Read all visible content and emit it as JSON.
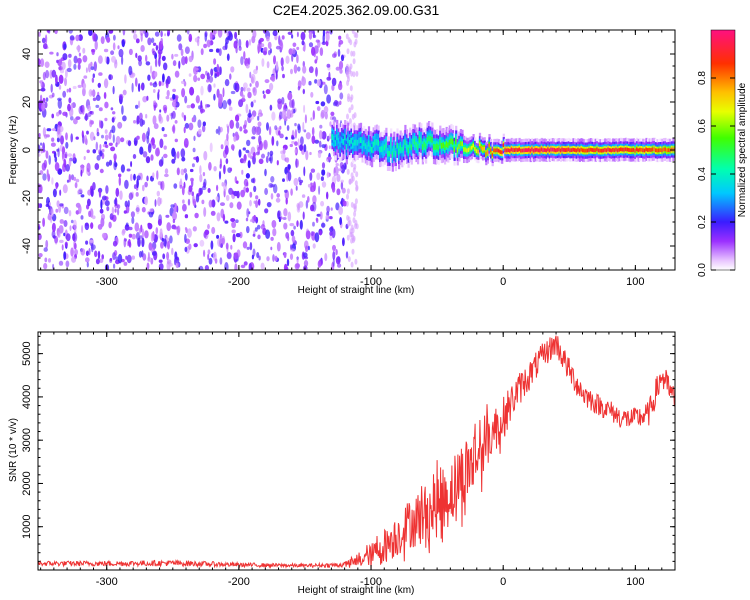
{
  "figure_title": "C2E4.2025.362.09.00.G31",
  "chart_data": [
    {
      "type": "heatmap",
      "title": "C2E4.2025.362.09.00.G31",
      "xlabel": "Height of straight line (km)",
      "ylabel": "Frequency (Hz)",
      "xlim": [
        -352,
        130
      ],
      "ylim": [
        -50,
        50
      ],
      "xticks": [
        -300,
        -200,
        -100,
        0,
        100
      ],
      "yticks": [
        -40,
        -20,
        0,
        20,
        40
      ],
      "colorbar": {
        "label": "Normalized spectral amplitude",
        "range": [
          0,
          1
        ],
        "ticks": [
          "0.0",
          "0.2",
          "0.4",
          "0.6",
          "0.8"
        ],
        "tick_values": [
          0.0,
          0.2,
          0.4,
          0.6,
          0.8
        ]
      },
      "noise_region": {
        "x": [
          -352,
          -118
        ],
        "y": [
          -50,
          50
        ],
        "amplitude": [
          0.05,
          0.2
        ]
      },
      "signal_track": [
        {
          "x": -130,
          "freq": 5,
          "width": 3,
          "amplitude": 0.38
        },
        {
          "x": -118,
          "freq": 3,
          "width": 3,
          "amplitude": 0.35
        },
        {
          "x": -100,
          "freq": 2,
          "width": 3,
          "amplitude": 0.4
        },
        {
          "x": -85,
          "freq": 0,
          "width": 3,
          "amplitude": 0.42
        },
        {
          "x": -70,
          "freq": 2,
          "width": 3,
          "amplitude": 0.45
        },
        {
          "x": -55,
          "freq": 3,
          "width": 3,
          "amplitude": 0.5
        },
        {
          "x": -40,
          "freq": 2,
          "width": 3,
          "amplitude": 0.55
        },
        {
          "x": -25,
          "freq": 1,
          "width": 2,
          "amplitude": 0.65
        },
        {
          "x": -10,
          "freq": 0,
          "width": 2,
          "amplitude": 0.8
        },
        {
          "x": 0,
          "freq": 0,
          "width": 2,
          "amplitude": 0.9
        },
        {
          "x": 20,
          "freq": 0,
          "width": 2,
          "amplitude": 0.95
        },
        {
          "x": 40,
          "freq": 0,
          "width": 2,
          "amplitude": 0.95
        },
        {
          "x": 60,
          "freq": 0,
          "width": 2,
          "amplitude": 0.85
        },
        {
          "x": 80,
          "freq": 0,
          "width": 2,
          "amplitude": 0.9
        },
        {
          "x": 100,
          "freq": 0,
          "width": 2,
          "amplitude": 0.85
        },
        {
          "x": 130,
          "freq": 0,
          "width": 2,
          "amplitude": 0.8
        }
      ],
      "legend": "none",
      "grid": false
    },
    {
      "type": "line",
      "xlabel": "Height of straight line (km)",
      "ylabel": "SNR (10 * v/v)",
      "xlim": [
        -352,
        130
      ],
      "ylim": [
        0,
        5500
      ],
      "xticks": [
        -300,
        -200,
        -100,
        0,
        100
      ],
      "yticks": [
        1000,
        2000,
        3000,
        4000,
        5000
      ],
      "color": "#ee3333",
      "x": [
        -352,
        -300,
        -250,
        -200,
        -150,
        -120,
        -110,
        -100,
        -90,
        -80,
        -70,
        -60,
        -50,
        -40,
        -30,
        -20,
        -10,
        0,
        10,
        20,
        30,
        40,
        50,
        60,
        70,
        80,
        90,
        100,
        110,
        120,
        130
      ],
      "values": [
        150,
        150,
        160,
        120,
        100,
        120,
        200,
        350,
        550,
        800,
        1100,
        1250,
        1500,
        1800,
        2200,
        2650,
        3100,
        3500,
        4100,
        4500,
        4950,
        5250,
        4600,
        4100,
        3850,
        3700,
        3500,
        3500,
        3600,
        4500,
        3900
      ],
      "noise_amplitude": [
        60,
        60,
        70,
        50,
        40,
        60,
        150,
        250,
        400,
        500,
        600,
        700,
        750,
        800,
        850,
        800,
        600,
        500,
        400,
        350,
        300,
        300,
        300,
        300,
        250,
        250,
        250,
        250,
        300,
        350,
        300
      ],
      "legend": "none",
      "grid": false
    }
  ]
}
